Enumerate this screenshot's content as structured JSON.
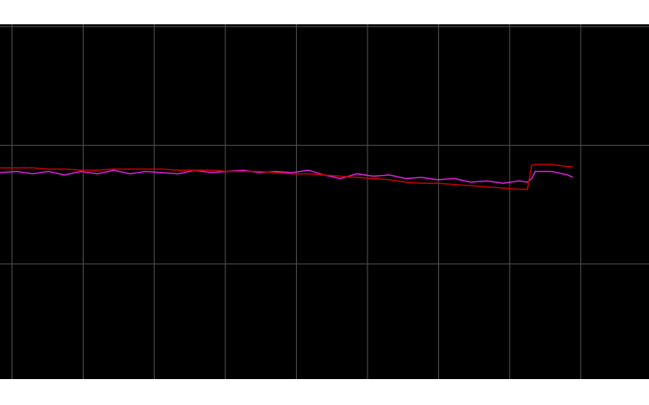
{
  "chart_data": {
    "type": "line",
    "x": [
      -0.17,
      0.06,
      0.29,
      0.51,
      0.74,
      0.97,
      1.2,
      1.43,
      1.66,
      1.88,
      2.11,
      2.34,
      2.57,
      2.8,
      3.03,
      3.25,
      3.48,
      3.71,
      3.94,
      4.17,
      4.39,
      4.62,
      4.85,
      5.08,
      5.31,
      5.54,
      5.76,
      5.99,
      6.22,
      6.45,
      6.68,
      6.91,
      7.13,
      7.25,
      7.31,
      7.36,
      7.59,
      7.82,
      7.89
    ],
    "series": [
      {
        "color": "#cc0000",
        "values": [
          1.81,
          1.81,
          1.81,
          1.8,
          1.8,
          1.79,
          1.79,
          1.8,
          1.8,
          1.8,
          1.8,
          1.79,
          1.79,
          1.79,
          1.78,
          1.78,
          1.78,
          1.77,
          1.76,
          1.76,
          1.75,
          1.74,
          1.73,
          1.72,
          1.71,
          1.69,
          1.68,
          1.68,
          1.67,
          1.66,
          1.65,
          1.64,
          1.63,
          1.63,
          1.83,
          1.84,
          1.84,
          1.82,
          1.82
        ]
      },
      {
        "color": "#e020e0",
        "values": [
          1.77,
          1.78,
          1.76,
          1.78,
          1.75,
          1.78,
          1.76,
          1.79,
          1.76,
          1.78,
          1.77,
          1.76,
          1.79,
          1.77,
          1.78,
          1.79,
          1.77,
          1.78,
          1.77,
          1.79,
          1.75,
          1.72,
          1.76,
          1.74,
          1.75,
          1.72,
          1.73,
          1.71,
          1.72,
          1.69,
          1.7,
          1.68,
          1.7,
          1.69,
          1.72,
          1.78,
          1.78,
          1.75,
          1.73
        ]
      }
    ],
    "xlim": [
      -0.17,
      8.96
    ],
    "ylim": [
      0.03,
      3.02
    ],
    "xticks": [
      0,
      1,
      2,
      3,
      4,
      5,
      6,
      7,
      8
    ],
    "yticks": [
      1,
      2,
      3
    ],
    "grid": true
  }
}
